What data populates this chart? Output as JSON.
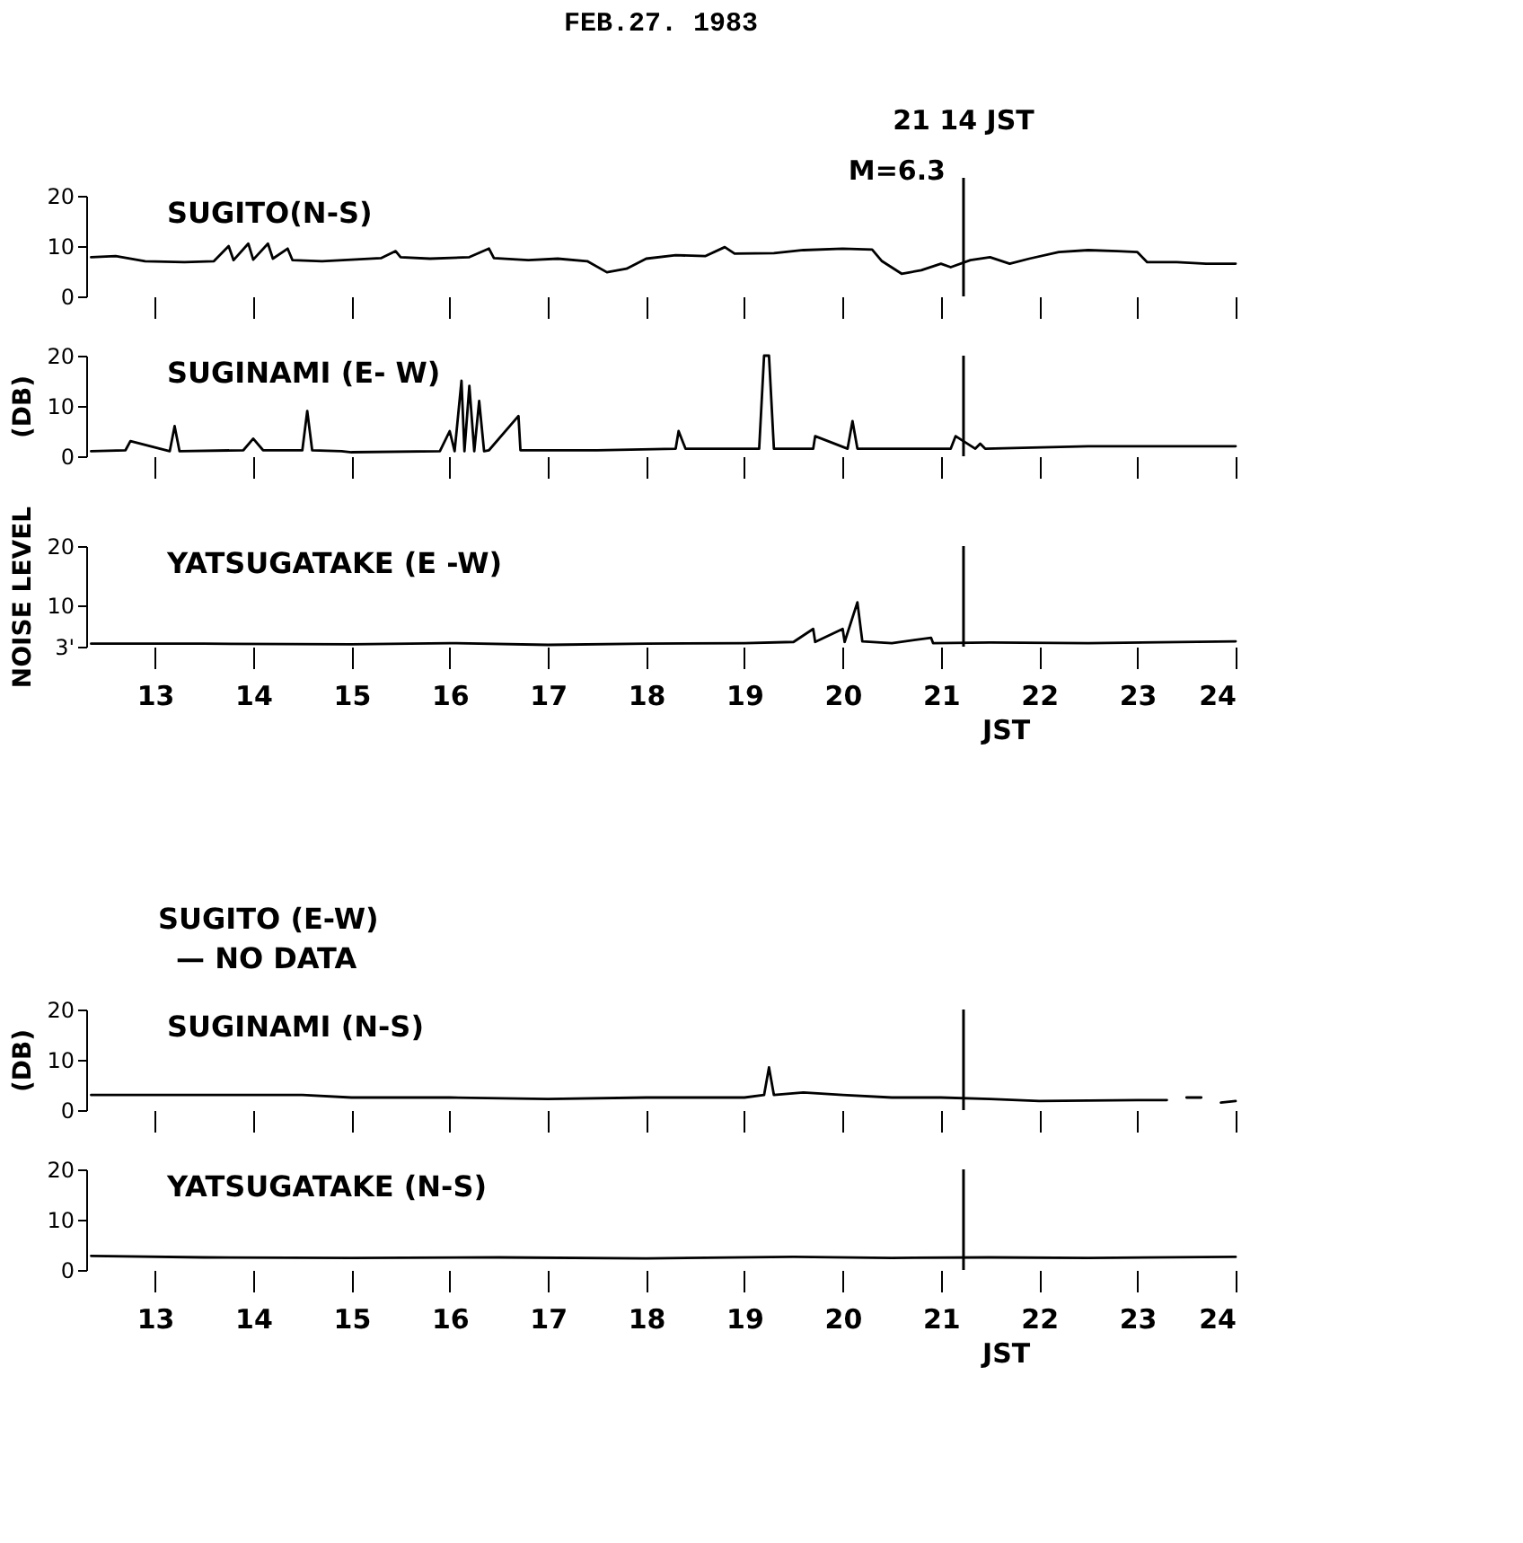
{
  "chart_data": [
    {
      "type": "line",
      "title": "FEB.27. 1983",
      "annotations": [
        "21 14 JST",
        "M=6.3"
      ],
      "xlim": [
        12.3,
        24
      ],
      "xticks": [
        13,
        14,
        15,
        16,
        17,
        18,
        19,
        20,
        21,
        22,
        23,
        24
      ],
      "ylim": [
        0,
        20
      ],
      "yticks": [
        0,
        10,
        20
      ],
      "tick_labels": "y",
      "grid": false,
      "legend": "top left",
      "line_style": "solid",
      "ref_lines": [
        {
          "axis": "x",
          "value": 21.23
        }
      ],
      "series": [
        {
          "name": "SUGITO(N-S)",
          "color": "#000000",
          "x": [
            12.35,
            12.6,
            12.9,
            13.3,
            13.6,
            13.75,
            13.8,
            13.95,
            14.0,
            14.15,
            14.2,
            14.35,
            14.4,
            14.7,
            15.0,
            15.3,
            15.45,
            15.5,
            15.8,
            16.2,
            16.4,
            16.45,
            16.8,
            17.1,
            17.4,
            17.6,
            17.8,
            18.0,
            18.3,
            18.6,
            18.8,
            18.9,
            19.3,
            19.6,
            20.0,
            20.3,
            20.4,
            20.6,
            20.8,
            21.0,
            21.1,
            21.3,
            21.5,
            21.7,
            21.9,
            22.2,
            22.5,
            22.8,
            23.0,
            23.1,
            23.4,
            23.7,
            24.0
          ],
          "values": [
            7.8,
            8,
            7,
            6.8,
            7,
            10,
            7.2,
            10.5,
            7.3,
            10.5,
            7.5,
            9.5,
            7.2,
            7,
            7.3,
            7.6,
            9,
            7.8,
            7.5,
            7.8,
            9.5,
            7.6,
            7.2,
            7.5,
            7,
            4.8,
            5.5,
            7.5,
            8.2,
            8,
            9.8,
            8.5,
            8.6,
            9.2,
            9.5,
            9.3,
            7,
            4.5,
            5.2,
            6.5,
            5.8,
            7.2,
            7.8,
            6.5,
            7.5,
            8.8,
            9.2,
            9,
            8.8,
            6.8,
            6.8,
            6.5,
            6.5
          ]
        }
      ]
    },
    {
      "type": "line",
      "ylabel": "(DB)",
      "xlim": [
        12.3,
        24
      ],
      "xticks": [
        13,
        14,
        15,
        16,
        17,
        18,
        19,
        20,
        21,
        22,
        23,
        24
      ],
      "ylim": [
        0,
        20
      ],
      "yticks": [
        0,
        10,
        20
      ],
      "tick_labels": "y",
      "grid": false,
      "legend": "top left",
      "line_style": "solid",
      "ref_lines": [
        {
          "axis": "x",
          "value": 21.23
        }
      ],
      "series": [
        {
          "name": "SUGINAMI (E- W)",
          "color": "#000000",
          "x": [
            12.35,
            12.7,
            12.75,
            13.15,
            13.2,
            13.25,
            13.9,
            14.0,
            14.1,
            14.5,
            14.55,
            14.6,
            14.9,
            15.0,
            15.9,
            16.0,
            16.05,
            16.12,
            16.15,
            16.2,
            16.25,
            16.3,
            16.35,
            16.4,
            16.7,
            16.72,
            17.5,
            18.3,
            18.33,
            18.4,
            19.15,
            19.2,
            19.25,
            19.3,
            19.7,
            19.72,
            20.05,
            20.1,
            20.15,
            20.5,
            21.1,
            21.15,
            21.35,
            21.4,
            21.45,
            22.5,
            24.0
          ],
          "values": [
            1,
            1.2,
            3,
            1,
            6,
            1,
            1.2,
            3.5,
            1.2,
            1.2,
            9,
            1.2,
            1,
            0.8,
            1,
            5,
            1,
            15,
            1,
            14,
            1,
            11,
            1,
            1.2,
            8,
            1.2,
            1.2,
            1.5,
            5,
            1.5,
            1.5,
            20,
            20,
            1.5,
            1.5,
            4,
            1.5,
            7,
            1.5,
            1.5,
            1.5,
            4,
            1.5,
            2.5,
            1.5,
            2,
            2
          ]
        }
      ]
    },
    {
      "type": "line",
      "ylabel": "NOISE LEVEL",
      "xlabel": "JST",
      "xlim": [
        12.3,
        24
      ],
      "xticks": [
        13,
        14,
        15,
        16,
        17,
        18,
        19,
        20,
        21,
        22,
        23,
        24
      ],
      "ylim": [
        3,
        20
      ],
      "yticks": [
        {
          "value": 3,
          "label": "3'"
        },
        10,
        20
      ],
      "grid": false,
      "legend": "top left",
      "line_style": "solid",
      "ref_lines": [
        {
          "axis": "x",
          "value": 21.23
        }
      ],
      "series": [
        {
          "name": "YATSUGATAKE (E -W)",
          "color": "#000000",
          "x": [
            12.35,
            13.5,
            15.0,
            16.0,
            17.0,
            18.0,
            19.0,
            19.5,
            19.7,
            19.72,
            20.0,
            20.02,
            20.15,
            20.2,
            20.5,
            20.9,
            20.92,
            21.5,
            22.5,
            24.0
          ],
          "values": [
            3.5,
            3.5,
            3.4,
            3.6,
            3.3,
            3.5,
            3.6,
            3.8,
            6,
            3.8,
            6,
            3.8,
            10.5,
            3.9,
            3.6,
            4.5,
            3.6,
            3.7,
            3.6,
            3.9
          ]
        }
      ]
    },
    {
      "type": "line",
      "ylabel": "(DB)",
      "annotations": [
        "SUGITO (E-W)",
        "— NO DATA"
      ],
      "xlim": [
        12.3,
        24
      ],
      "xticks": [
        13,
        14,
        15,
        16,
        17,
        18,
        19,
        20,
        21,
        22,
        23,
        24
      ],
      "ylim": [
        0,
        20
      ],
      "yticks": [
        0,
        10,
        20
      ],
      "tick_labels": "y",
      "grid": false,
      "legend": "top left",
      "line_style": "solid",
      "ref_lines": [
        {
          "axis": "x",
          "value": 21.23
        }
      ],
      "series": [
        {
          "name": "SUGINAMI (N-S)",
          "color": "#000000",
          "x": [
            12.35,
            13.0,
            14.0,
            14.5,
            15.0,
            16.0,
            17.0,
            18.0,
            18.5,
            19.0,
            19.2,
            19.25,
            19.3,
            19.6,
            20.0,
            20.5,
            21.0,
            21.5,
            22.0,
            23.0,
            23.3,
            23.4,
            23.5,
            23.65,
            23.7,
            23.85,
            24.0
          ],
          "values": [
            3,
            3,
            3,
            3,
            2.5,
            2.5,
            2.2,
            2.5,
            2.5,
            2.5,
            3,
            8.5,
            3,
            3.5,
            3,
            2.5,
            2.5,
            2.2,
            1.8,
            2,
            2,
            null,
            2.5,
            2.5,
            null,
            1.5,
            1.8
          ]
        }
      ]
    },
    {
      "type": "line",
      "xlabel": "JST",
      "xlim": [
        12.3,
        24
      ],
      "xticks": [
        13,
        14,
        15,
        16,
        17,
        18,
        19,
        20,
        21,
        22,
        23,
        24
      ],
      "ylim": [
        0,
        20
      ],
      "yticks": [
        0,
        10,
        20
      ],
      "grid": false,
      "legend": "top left",
      "line_style": "solid",
      "ref_lines": [
        {
          "axis": "x",
          "value": 21.23
        }
      ],
      "series": [
        {
          "name": "YATSUGATAKE (N-S)",
          "color": "#000000",
          "x": [
            12.35,
            13.5,
            15.0,
            16.5,
            18.0,
            19.5,
            20.5,
            21.5,
            22.5,
            24.0
          ],
          "values": [
            2.8,
            2.5,
            2.4,
            2.5,
            2.3,
            2.6,
            2.4,
            2.5,
            2.4,
            2.6
          ]
        }
      ]
    }
  ]
}
